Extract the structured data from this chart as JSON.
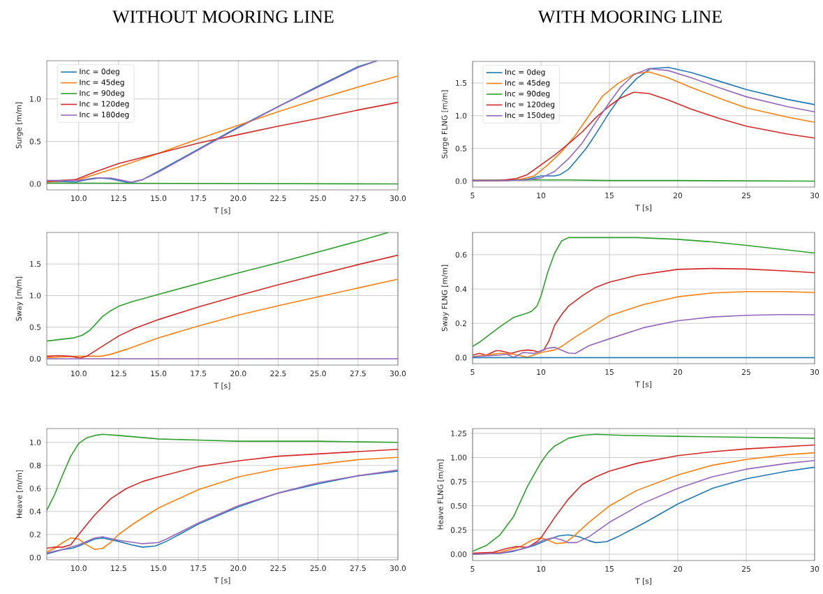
{
  "chart_data": [
    {
      "type": "line",
      "title": "WITHOUT MOORING LINE",
      "xlabel": "T [s]",
      "ylabel": "Surge [m/m]",
      "grid": true,
      "legend": "top left",
      "xlim": [
        8,
        30
      ],
      "xticks": [
        {
          "value": 10,
          "label": "10.0"
        },
        {
          "value": 12.5,
          "label": "12.5"
        },
        {
          "value": 15,
          "label": "15.0"
        },
        {
          "value": 17.5,
          "label": "17.5"
        },
        {
          "value": 20,
          "label": "20.0"
        },
        {
          "value": 22.5,
          "label": "22.5"
        },
        {
          "value": 25,
          "label": "25.0"
        },
        {
          "value": 27.5,
          "label": "27.5"
        },
        {
          "value": 30,
          "label": "30.0"
        }
      ],
      "ylim": [
        -0.07,
        1.45
      ],
      "yticks": [
        {
          "value": 0,
          "label": "0.0"
        },
        {
          "value": 0.5,
          "label": "0.5"
        },
        {
          "value": 1,
          "label": "1.0"
        }
      ],
      "series": [
        {
          "name": "Inc = 0deg",
          "color": "#1f77b4",
          "x": [
            8,
            9,
            9.8,
            10.5,
            11.3,
            12,
            12.7,
            13.2,
            14,
            15,
            17.5,
            20,
            22.5,
            25,
            27.5,
            28.7
          ],
          "values": [
            0.03,
            0.03,
            0.02,
            0.05,
            0.07,
            0.06,
            0.03,
            0.01,
            0.05,
            0.15,
            0.41,
            0.67,
            0.91,
            1.15,
            1.38,
            1.45
          ]
        },
        {
          "name": "Inc = 45deg",
          "color": "#ff7f0e",
          "x": [
            8,
            9,
            10,
            12.5,
            15,
            17.5,
            20,
            22.5,
            25,
            27.5,
            30
          ],
          "values": [
            0.02,
            0.04,
            0.05,
            0.2,
            0.36,
            0.53,
            0.69,
            0.85,
            1.0,
            1.14,
            1.27
          ]
        },
        {
          "name": "Inc = 90deg",
          "color": "#2ca02c",
          "x": [
            8,
            30
          ],
          "values": [
            0.01,
            0.0
          ]
        },
        {
          "name": "Inc = 120deg",
          "color": "#d62728",
          "x": [
            8,
            9.8,
            11,
            12.5,
            15,
            17.5,
            20,
            22.5,
            25,
            27.5,
            30
          ],
          "values": [
            0.03,
            0.05,
            0.14,
            0.24,
            0.36,
            0.48,
            0.58,
            0.68,
            0.77,
            0.87,
            0.96
          ]
        },
        {
          "name": "Inc = 180deg",
          "color": "#9467bd",
          "x": [
            8,
            9,
            10,
            11,
            12,
            12.8,
            13.3,
            14,
            15,
            17.5,
            20,
            22.5,
            25,
            27.5,
            28.7
          ],
          "values": [
            0.04,
            0.04,
            0.04,
            0.07,
            0.07,
            0.04,
            0.02,
            0.05,
            0.14,
            0.4,
            0.66,
            0.91,
            1.14,
            1.37,
            1.45
          ]
        }
      ]
    },
    {
      "type": "line",
      "title": "WITH MOORING LINE",
      "xlabel": "T [s]",
      "ylabel": "Surge FLNG [m/m]",
      "grid": true,
      "legend": "top left",
      "xlim": [
        5,
        30
      ],
      "xticks": [
        5,
        10,
        15,
        20,
        25,
        30
      ],
      "ylim": [
        -0.09,
        1.83
      ],
      "yticks": [
        {
          "value": 0,
          "label": "0.0"
        },
        {
          "value": 0.5,
          "label": "0.5"
        },
        {
          "value": 1,
          "label": "1.0"
        },
        {
          "value": 1.5,
          "label": "1.5"
        }
      ],
      "series": [
        {
          "name": "Inc = 0deg",
          "color": "#1f77b4",
          "x": [
            5,
            7.5,
            9,
            10,
            11,
            11.4,
            12,
            12.5,
            13.3,
            14,
            15,
            16,
            17,
            18,
            19.3,
            21,
            23,
            25,
            28,
            30
          ],
          "values": [
            0.01,
            0.01,
            0.03,
            0.08,
            0.08,
            0.1,
            0.18,
            0.3,
            0.5,
            0.72,
            1.05,
            1.35,
            1.57,
            1.72,
            1.74,
            1.66,
            1.53,
            1.4,
            1.25,
            1.17
          ]
        },
        {
          "name": "Inc = 45deg",
          "color": "#ff7f0e",
          "x": [
            5,
            7.5,
            8.5,
            9.5,
            10.5,
            11.5,
            12.5,
            13.5,
            14.5,
            15.6,
            16.8,
            17.9,
            19.3,
            21,
            23,
            25,
            28,
            30
          ],
          "values": [
            0.01,
            0.01,
            0.03,
            0.08,
            0.25,
            0.45,
            0.7,
            1.0,
            1.3,
            1.49,
            1.64,
            1.67,
            1.58,
            1.43,
            1.27,
            1.12,
            0.98,
            0.9
          ]
        },
        {
          "name": "Inc = 90deg",
          "color": "#2ca02c",
          "x": [
            5,
            10,
            12,
            15,
            20,
            30
          ],
          "values": [
            0.01,
            0.02,
            0.02,
            0.01,
            0.01,
            0.0
          ]
        },
        {
          "name": "Inc = 120deg",
          "color": "#d62728",
          "x": [
            5,
            7,
            8.2,
            9,
            10,
            11,
            12,
            13,
            14,
            15,
            15.8,
            16.8,
            17.9,
            19.3,
            21,
            23,
            25,
            28,
            30
          ],
          "values": [
            0.01,
            0.01,
            0.04,
            0.1,
            0.25,
            0.4,
            0.57,
            0.75,
            0.97,
            1.15,
            1.27,
            1.36,
            1.34,
            1.24,
            1.1,
            0.96,
            0.84,
            0.72,
            0.66
          ]
        },
        {
          "name": "Inc = 150deg",
          "color": "#9467bd",
          "x": [
            5,
            7.5,
            9,
            10,
            11,
            12,
            13,
            14,
            15,
            15.8,
            16.8,
            17.9,
            19.3,
            21,
            23,
            25,
            28,
            30
          ],
          "values": [
            0.01,
            0.01,
            0.02,
            0.05,
            0.15,
            0.34,
            0.58,
            0.9,
            1.2,
            1.43,
            1.63,
            1.72,
            1.69,
            1.58,
            1.43,
            1.29,
            1.14,
            1.06
          ]
        }
      ]
    },
    {
      "type": "line",
      "xlabel": "T [s]",
      "ylabel": "Sway [m/m]",
      "grid": true,
      "xlim": [
        8,
        30
      ],
      "xticks": [
        {
          "value": 10,
          "label": "10.0"
        },
        {
          "value": 12.5,
          "label": "12.5"
        },
        {
          "value": 15,
          "label": "15.0"
        },
        {
          "value": 17.5,
          "label": "17.5"
        },
        {
          "value": 20,
          "label": "20.0"
        },
        {
          "value": 22.5,
          "label": "22.5"
        },
        {
          "value": 25,
          "label": "25.0"
        },
        {
          "value": 27.5,
          "label": "27.5"
        },
        {
          "value": 30,
          "label": "30.0"
        }
      ],
      "ylim": [
        -0.1,
        2.0
      ],
      "yticks": [
        {
          "value": 0,
          "label": "0.0"
        },
        {
          "value": 0.5,
          "label": "0.5"
        },
        {
          "value": 1,
          "label": "1.0"
        },
        {
          "value": 1.5,
          "label": "1.5"
        }
      ],
      "series": [
        {
          "color": "#ff7f0e",
          "x": [
            8,
            9,
            10,
            11.4,
            12,
            13,
            15,
            17.5,
            20,
            22.5,
            25,
            27.5,
            30
          ],
          "values": [
            0.02,
            0.03,
            0.04,
            0.04,
            0.07,
            0.15,
            0.33,
            0.52,
            0.69,
            0.84,
            0.98,
            1.12,
            1.26
          ]
        },
        {
          "color": "#2ca02c",
          "x": [
            8,
            9,
            9.7,
            10.2,
            10.7,
            11.5,
            12,
            12.5,
            13.3,
            15,
            17.5,
            20,
            22.5,
            25,
            27.5,
            29.4
          ],
          "values": [
            0.28,
            0.31,
            0.33,
            0.37,
            0.45,
            0.67,
            0.76,
            0.83,
            0.9,
            1.02,
            1.19,
            1.36,
            1.52,
            1.69,
            1.86,
            2.0
          ]
        },
        {
          "color": "#d62728",
          "x": [
            8,
            8.7,
            9.5,
            10.1,
            10.5,
            11.5,
            12.5,
            13.5,
            15,
            17.5,
            20,
            22.5,
            25,
            27.5,
            30
          ],
          "values": [
            0.04,
            0.05,
            0.04,
            0.01,
            0.04,
            0.2,
            0.36,
            0.48,
            0.62,
            0.82,
            1.0,
            1.17,
            1.33,
            1.49,
            1.64
          ]
        },
        {
          "color": "#9467bd",
          "x": [
            8,
            30
          ],
          "values": [
            0.0,
            0.0
          ]
        }
      ]
    },
    {
      "type": "line",
      "xlabel": "T [s]",
      "ylabel": "Sway FLNG [m/m]",
      "grid": true,
      "xlim": [
        5,
        30
      ],
      "xticks": [
        5,
        10,
        15,
        20,
        25,
        30
      ],
      "ylim": [
        -0.035,
        0.73
      ],
      "yticks": [
        {
          "value": 0,
          "label": "0.0"
        },
        {
          "value": 0.2,
          "label": "0.2"
        },
        {
          "value": 0.4,
          "label": "0.4"
        },
        {
          "value": 0.6,
          "label": "0.6"
        }
      ],
      "series": [
        {
          "color": "#2ca02c",
          "x": [
            5,
            5.5,
            6,
            7,
            8,
            9,
            9.3,
            9.7,
            10,
            10.5,
            11,
            11.5,
            12,
            12.5,
            15,
            17,
            20,
            22.5,
            25,
            30
          ],
          "values": [
            0.065,
            0.09,
            0.12,
            0.18,
            0.235,
            0.26,
            0.27,
            0.3,
            0.36,
            0.5,
            0.61,
            0.68,
            0.7,
            0.7,
            0.7,
            0.7,
            0.69,
            0.675,
            0.655,
            0.61
          ]
        },
        {
          "color": "#d62728",
          "x": [
            5,
            5.5,
            6,
            6.7,
            7,
            7.8,
            8.5,
            9,
            9.5,
            9.8,
            10.2,
            10.6,
            11,
            11.5,
            12,
            13,
            14,
            15,
            17,
            20,
            22.5,
            25,
            28,
            30
          ],
          "values": [
            0.015,
            0.025,
            0.015,
            0.04,
            0.04,
            0.025,
            0.04,
            0.045,
            0.04,
            0.032,
            0.045,
            0.1,
            0.19,
            0.25,
            0.3,
            0.36,
            0.41,
            0.44,
            0.48,
            0.515,
            0.52,
            0.517,
            0.505,
            0.495
          ]
        },
        {
          "color": "#ff7f0e",
          "x": [
            5,
            6,
            7,
            8,
            9,
            10,
            11,
            11.5,
            12.5,
            13.5,
            15,
            17.5,
            20,
            22.5,
            25,
            27.5,
            30
          ],
          "values": [
            0.005,
            0.015,
            0.025,
            0.02,
            0.003,
            0.03,
            0.045,
            0.065,
            0.12,
            0.17,
            0.245,
            0.31,
            0.355,
            0.377,
            0.385,
            0.385,
            0.38
          ]
        },
        {
          "color": "#9467bd",
          "x": [
            5,
            6,
            7,
            7.5,
            8,
            8.7,
            9.5,
            10.5,
            11,
            12,
            12.5,
            13.5,
            15,
            17.5,
            20,
            22.5,
            25,
            28,
            30
          ],
          "values": [
            0.005,
            0.01,
            0.015,
            0.02,
            0.002,
            0.03,
            0.025,
            0.055,
            0.06,
            0.027,
            0.024,
            0.07,
            0.11,
            0.175,
            0.215,
            0.237,
            0.247,
            0.252,
            0.25
          ]
        },
        {
          "color": "#1f77b4",
          "x": [
            5,
            30
          ],
          "values": [
            0.0,
            0.0
          ]
        }
      ]
    },
    {
      "type": "line",
      "xlabel": "T [s]",
      "ylabel": "Heave [m/m]",
      "grid": true,
      "xlim": [
        8,
        30
      ],
      "xticks": [
        {
          "value": 10,
          "label": "10.0"
        },
        {
          "value": 12.5,
          "label": "12.5"
        },
        {
          "value": 15,
          "label": "15.0"
        },
        {
          "value": 17.5,
          "label": "17.5"
        },
        {
          "value": 20,
          "label": "20.0"
        },
        {
          "value": 22.5,
          "label": "22.5"
        },
        {
          "value": 25,
          "label": "25.0"
        },
        {
          "value": 27.5,
          "label": "27.5"
        },
        {
          "value": 30,
          "label": "30.0"
        }
      ],
      "ylim": [
        -0.02,
        1.12
      ],
      "yticks": [
        {
          "value": 0,
          "label": "0.0"
        },
        {
          "value": 0.2,
          "label": "0.2"
        },
        {
          "value": 0.4,
          "label": "0.4"
        },
        {
          "value": 0.6,
          "label": "0.6"
        },
        {
          "value": 0.8,
          "label": "0.8"
        },
        {
          "value": 1,
          "label": "1.0"
        }
      ],
      "series": [
        {
          "color": "#1f77b4",
          "x": [
            8,
            9,
            9.6,
            10,
            11,
            11.5,
            12.5,
            13.3,
            14,
            14.8,
            15.5,
            17.5,
            20,
            22.5,
            25,
            27.5,
            30
          ],
          "values": [
            0.03,
            0.07,
            0.08,
            0.1,
            0.16,
            0.17,
            0.14,
            0.11,
            0.09,
            0.1,
            0.14,
            0.29,
            0.44,
            0.56,
            0.64,
            0.71,
            0.75
          ]
        },
        {
          "color": "#ff7f0e",
          "x": [
            8,
            8.5,
            9,
            9.5,
            10,
            10.5,
            11,
            11.5,
            12,
            12.5,
            13.5,
            15,
            17.5,
            20,
            22.5,
            25,
            27.5,
            30
          ],
          "values": [
            0.05,
            0.08,
            0.13,
            0.17,
            0.16,
            0.11,
            0.07,
            0.08,
            0.13,
            0.2,
            0.3,
            0.43,
            0.59,
            0.7,
            0.77,
            0.81,
            0.85,
            0.87
          ]
        },
        {
          "color": "#2ca02c",
          "x": [
            8,
            8.5,
            9,
            9.5,
            10,
            10.5,
            11,
            11.5,
            12.5,
            15,
            17.5,
            20,
            25,
            30
          ],
          "values": [
            0.41,
            0.55,
            0.72,
            0.88,
            0.99,
            1.04,
            1.06,
            1.07,
            1.06,
            1.03,
            1.02,
            1.01,
            1.01,
            1.0
          ]
        },
        {
          "color": "#d62728",
          "x": [
            8,
            8.5,
            9,
            9.5,
            10,
            11,
            12,
            13,
            14,
            15,
            17.5,
            20,
            22.5,
            25,
            27.5,
            30
          ],
          "values": [
            0.08,
            0.09,
            0.09,
            0.11,
            0.2,
            0.37,
            0.51,
            0.6,
            0.66,
            0.7,
            0.79,
            0.84,
            0.88,
            0.9,
            0.92,
            0.94
          ]
        },
        {
          "color": "#9467bd",
          "x": [
            8,
            9,
            10,
            11,
            11.5,
            12.5,
            14,
            15,
            15.5,
            17.5,
            20,
            22.5,
            25,
            27.5,
            30
          ],
          "values": [
            0.04,
            0.07,
            0.11,
            0.17,
            0.18,
            0.15,
            0.12,
            0.13,
            0.16,
            0.3,
            0.45,
            0.56,
            0.65,
            0.71,
            0.76
          ]
        }
      ]
    },
    {
      "type": "line",
      "xlabel": "T [s]",
      "ylabel": "Heave FLNG [m/m]",
      "grid": true,
      "xlim": [
        5,
        30
      ],
      "xticks": [
        5,
        10,
        15,
        20,
        25,
        30
      ],
      "ylim": [
        -0.065,
        1.3
      ],
      "yticks": [
        {
          "value": 0,
          "label": "0.00"
        },
        {
          "value": 0.25,
          "label": "0.25"
        },
        {
          "value": 0.5,
          "label": "0.50"
        },
        {
          "value": 0.75,
          "label": "0.75"
        },
        {
          "value": 1,
          "label": "1.00"
        },
        {
          "value": 1.25,
          "label": "1.25"
        }
      ],
      "series": [
        {
          "color": "#1f77b4",
          "x": [
            5,
            7,
            8,
            9.5,
            10.5,
            11.3,
            12,
            12.8,
            13.5,
            14,
            14.8,
            15.6,
            17.5,
            20,
            22.5,
            25,
            28,
            30
          ],
          "values": [
            0.0,
            0.01,
            0.03,
            0.09,
            0.15,
            0.19,
            0.2,
            0.18,
            0.14,
            0.12,
            0.13,
            0.18,
            0.32,
            0.52,
            0.68,
            0.78,
            0.86,
            0.9
          ]
        },
        {
          "color": "#ff7f0e",
          "x": [
            5,
            7,
            8.5,
            9.4,
            10,
            10.6,
            11.1,
            11.8,
            12.5,
            13.5,
            15,
            17,
            20,
            22.5,
            25,
            28,
            30
          ],
          "values": [
            0.0,
            0.02,
            0.08,
            0.15,
            0.17,
            0.14,
            0.11,
            0.12,
            0.2,
            0.33,
            0.5,
            0.66,
            0.82,
            0.92,
            0.98,
            1.03,
            1.05
          ]
        },
        {
          "color": "#2ca02c",
          "x": [
            5,
            6,
            7,
            8,
            9,
            10,
            10.5,
            11,
            12,
            13,
            14,
            16,
            20,
            25,
            30
          ],
          "values": [
            0.03,
            0.09,
            0.2,
            0.39,
            0.7,
            0.95,
            1.05,
            1.12,
            1.2,
            1.23,
            1.24,
            1.23,
            1.22,
            1.21,
            1.2
          ]
        },
        {
          "color": "#d62728",
          "x": [
            5,
            6.5,
            7.5,
            8.2,
            9,
            9.7,
            10,
            11,
            12,
            13,
            14,
            15,
            17,
            20,
            22.5,
            25,
            30
          ],
          "values": [
            0.01,
            0.02,
            0.06,
            0.08,
            0.07,
            0.13,
            0.17,
            0.38,
            0.57,
            0.72,
            0.8,
            0.86,
            0.94,
            1.02,
            1.06,
            1.09,
            1.13
          ]
        },
        {
          "color": "#9467bd",
          "x": [
            5,
            7,
            8.5,
            9.5,
            10.2,
            10.9,
            11.5,
            12,
            12.6,
            13.5,
            15,
            17.5,
            20,
            22.5,
            25,
            28,
            30
          ],
          "values": [
            0.0,
            0.01,
            0.05,
            0.1,
            0.15,
            0.17,
            0.15,
            0.12,
            0.12,
            0.18,
            0.33,
            0.53,
            0.68,
            0.8,
            0.88,
            0.94,
            0.97
          ]
        }
      ]
    }
  ]
}
